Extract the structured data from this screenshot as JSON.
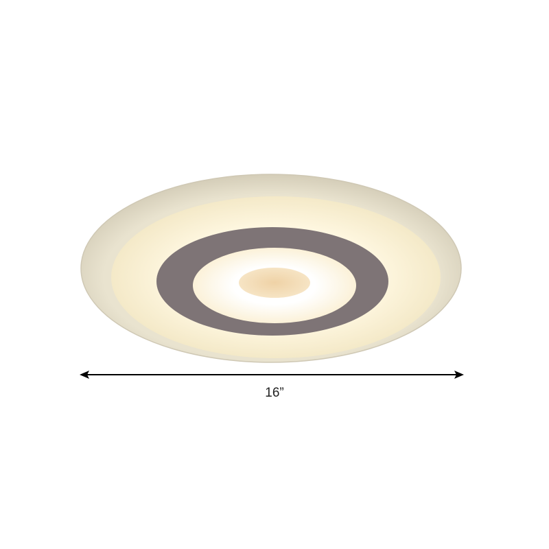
{
  "product": {
    "name": "ceiling-light",
    "colors": {
      "outer_rim": "#dcd6c4",
      "glow": "#fbf3da",
      "dark_ring": "#7e7476",
      "inner_disc": "#fffdf6",
      "center_dot": "#eed3a8"
    }
  },
  "dimension": {
    "width_label": "16”"
  }
}
